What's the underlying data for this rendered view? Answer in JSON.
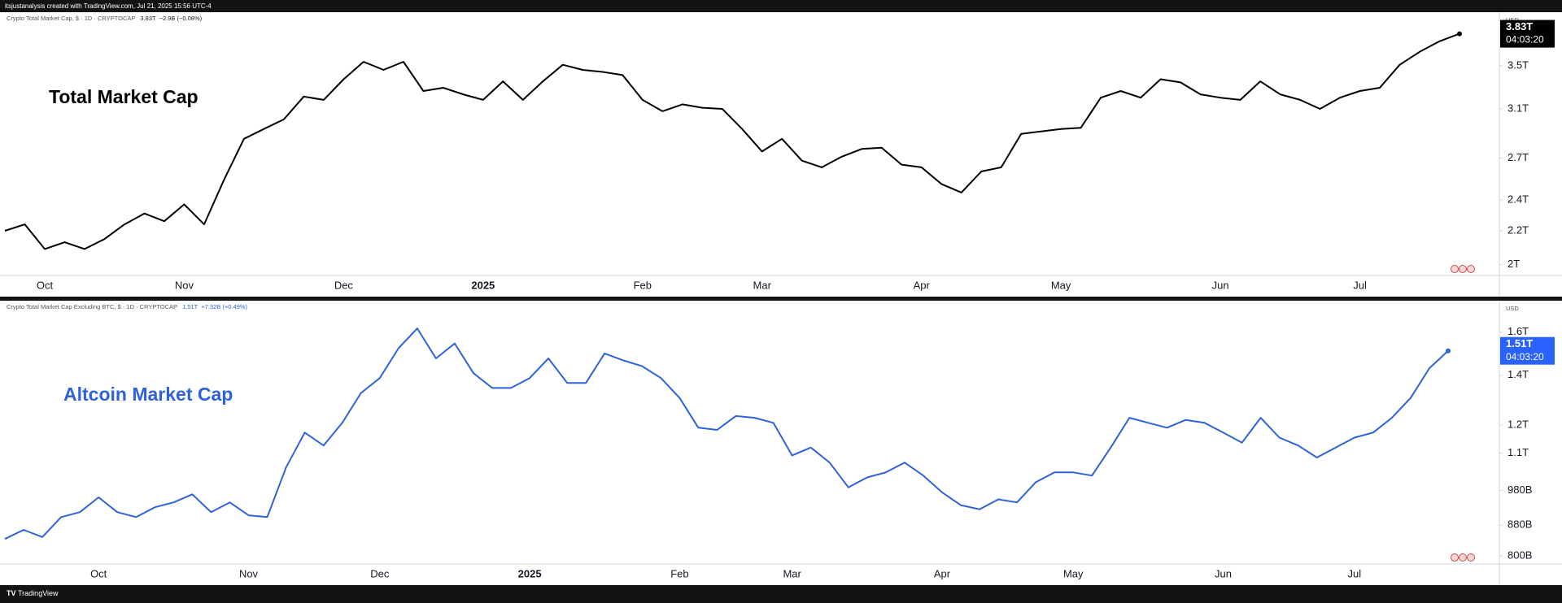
{
  "header": {
    "caption": "itsjustanalysis created with TradingView.com, Jul 21, 2025 15:56 UTC-4"
  },
  "chart_data": [
    {
      "type": "line",
      "annotation": "Total Market Cap",
      "last": "3.83T",
      "change": "−2.9B (−0.08%)",
      "currency": "USD",
      "countdown": "04:03:20",
      "categories": [
        null,
        null,
        "Oct",
        null,
        null,
        null,
        null,
        null,
        null,
        "Nov",
        null,
        null,
        null,
        null,
        null,
        null,
        null,
        "Dec",
        null,
        null,
        null,
        null,
        null,
        null,
        "2025",
        null,
        null,
        null,
        null,
        null,
        null,
        null,
        "Feb",
        null,
        null,
        null,
        null,
        null,
        "Mar",
        null,
        null,
        null,
        null,
        null,
        null,
        null,
        "Apr",
        null,
        null,
        null,
        null,
        null,
        null,
        "May",
        null,
        null,
        null,
        null,
        null,
        null,
        null,
        "Jun",
        null,
        null,
        null,
        null,
        null,
        null,
        "Jul",
        null,
        null,
        null,
        null,
        null
      ],
      "series": [
        {
          "name": "Crypto Total Market Cap, $ · 1D · CRYPTOCAP",
          "color": "#000000",
          "values": [
            2.2,
            2.24,
            2.09,
            2.13,
            2.09,
            2.15,
            2.24,
            2.31,
            2.26,
            2.37,
            2.24,
            2.54,
            2.85,
            2.93,
            3.01,
            3.21,
            3.18,
            3.37,
            3.54,
            3.46,
            3.54,
            3.26,
            3.29,
            3.23,
            3.18,
            3.35,
            3.18,
            3.35,
            3.51,
            3.46,
            3.44,
            3.41,
            3.18,
            3.08,
            3.14,
            3.11,
            3.1,
            2.93,
            2.75,
            2.85,
            2.68,
            2.63,
            2.71,
            2.77,
            2.78,
            2.65,
            2.63,
            2.51,
            2.45,
            2.6,
            2.63,
            2.89,
            2.91,
            2.93,
            2.94,
            3.2,
            3.26,
            3.2,
            3.37,
            3.34,
            3.23,
            3.2,
            3.18,
            3.35,
            3.23,
            3.18,
            3.1,
            3.2,
            3.26,
            3.29,
            3.51,
            3.64,
            3.75,
            3.83
          ]
        }
      ],
      "ylim": [
        1.94,
        4.07
      ],
      "log_scale": true,
      "grid": false,
      "yticks": [
        {
          "value": 2,
          "label": "2T"
        },
        {
          "value": 2.2,
          "label": "2.2T"
        },
        {
          "value": 2.4,
          "label": "2.4T"
        },
        {
          "value": 2.7,
          "label": "2.7T"
        },
        {
          "value": 3.1,
          "label": "3.1T"
        },
        {
          "value": 3.5,
          "label": "3.5T"
        }
      ]
    },
    {
      "type": "line",
      "annotation": "Altcoin Market Cap",
      "last": "1.51T",
      "change": "+7.32B (+0.49%)",
      "currency": "USD",
      "countdown": "04:03:20",
      "categories": [
        null,
        null,
        null,
        null,
        null,
        "Oct",
        null,
        null,
        null,
        null,
        null,
        null,
        null,
        "Nov",
        null,
        null,
        null,
        null,
        null,
        null,
        "Dec",
        null,
        null,
        null,
        null,
        null,
        null,
        null,
        "2025",
        null,
        null,
        null,
        null,
        null,
        null,
        null,
        "Feb",
        null,
        null,
        null,
        null,
        null,
        "Mar",
        null,
        null,
        null,
        null,
        null,
        null,
        null,
        "Apr",
        null,
        null,
        null,
        null,
        null,
        null,
        "May",
        null,
        null,
        null,
        null,
        null,
        null,
        null,
        "Jun",
        null,
        null,
        null,
        null,
        null,
        null,
        "Jul",
        null,
        null,
        null,
        null,
        null
      ],
      "series": [
        {
          "name": "Crypto Total Market Cap Excluding BTC, $ · 1D · CRYPTOCAP",
          "color": "#2e62d9",
          "values": [
            843,
            867,
            848,
            902,
            916,
            959,
            916,
            902,
            930,
            944,
            968,
            916,
            944,
            907,
            902,
            1052,
            1172,
            1126,
            1208,
            1325,
            1388,
            1522,
            1619,
            1475,
            1545,
            1409,
            1346,
            1346,
            1388,
            1475,
            1367,
            1367,
            1498,
            1466,
            1440,
            1388,
            1305,
            1190,
            1182,
            1234,
            1227,
            1208,
            1092,
            1119,
            1068,
            989,
            1020,
            1036,
            1068,
            1026,
            974,
            936,
            924,
            953,
            944,
            1005,
            1036,
            1036,
            1026,
            1119,
            1227,
            1208,
            1190,
            1219,
            1208,
            1172,
            1136,
            1227,
            1154,
            1126,
            1085,
            1119,
            1154,
            1172,
            1227,
            1305,
            1431,
            1510
          ]
        }
      ],
      "ylim": [
        780,
        1764
      ],
      "log_scale": true,
      "grid": false,
      "yticks": [
        {
          "value": 800,
          "label": "800B"
        },
        {
          "value": 880,
          "label": "880B"
        },
        {
          "value": 980,
          "label": "980B"
        },
        {
          "value": 1100,
          "label": "1.1T"
        },
        {
          "value": 1200,
          "label": "1.2T"
        },
        {
          "value": 1400,
          "label": "1.4T"
        },
        {
          "value": 1600,
          "label": "1.6T"
        }
      ]
    }
  ],
  "footer": {
    "brand": "TradingView"
  }
}
